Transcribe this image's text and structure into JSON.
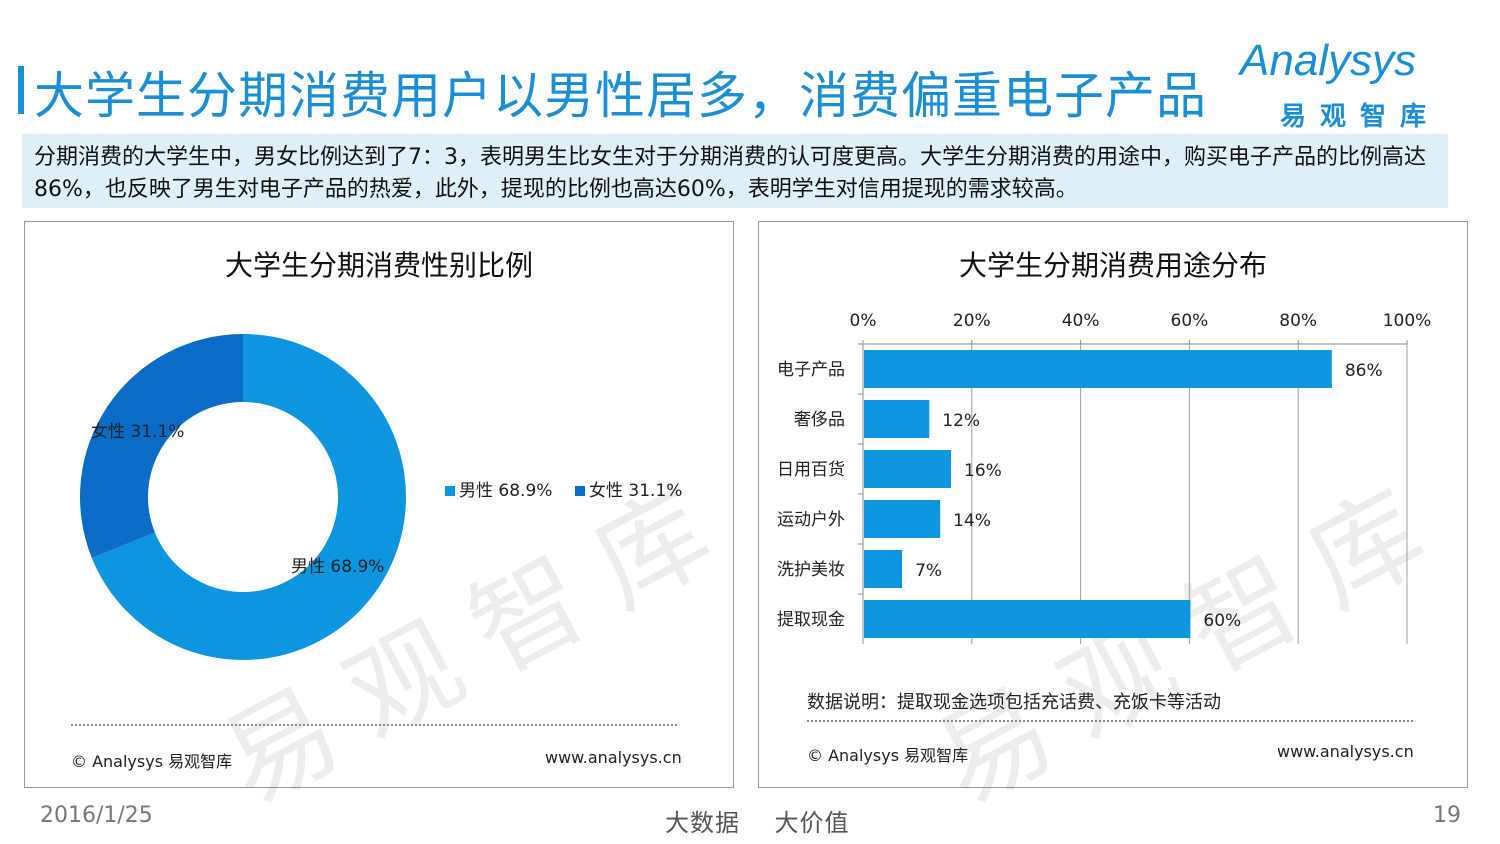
{
  "header": {
    "title": "大学生分期消费用户以男性居多，消费偏重电子产品",
    "logo_text": "Analysys",
    "logo_cn": "易观智库"
  },
  "summary": "分期消费的大学生中，男女比例达到了7：3，表明男生比女生对于分期消费的认可度更高。大学生分期消费的用途中，购买电子产品的比例高达86%，也反映了男生对电子产品的热爱，此外，提现的比例也高达60%，表明学生对信用提现的需求较高。",
  "watermark": "易观智库",
  "left_panel": {
    "footer_copy": "© Analysys 易观智库",
    "footer_url": "www.analysys.cn"
  },
  "right_panel": {
    "note": "数据说明：提取现金选项包括充话费、充饭卡等活动",
    "footer_copy": "© Analysys 易观智库",
    "footer_url": "www.analysys.cn"
  },
  "chart_data": [
    {
      "type": "pie",
      "title": "大学生分期消费性别比例",
      "categories": [
        "男性",
        "女性"
      ],
      "values": [
        68.9,
        31.1
      ],
      "value_labels": [
        "68.9%",
        "31.1%"
      ],
      "legend": "right",
      "colors": [
        "#0e95df",
        "#0a6cc6"
      ]
    },
    {
      "type": "bar",
      "orientation": "horizontal",
      "title": "大学生分期消费用途分布",
      "categories": [
        "电子产品",
        "奢侈品",
        "日用百货",
        "运动户外",
        "洗护美妆",
        "提取现金"
      ],
      "values": [
        86,
        12,
        16,
        14,
        7,
        60
      ],
      "value_labels": [
        "86%",
        "12%",
        "16%",
        "14%",
        "7%",
        "60%"
      ],
      "xlim": [
        0,
        100
      ],
      "ticks": [
        "0%",
        "20%",
        "40%",
        "60%",
        "80%",
        "100%"
      ],
      "grid": true,
      "color": "#0e95df"
    }
  ],
  "bottom": {
    "date": "2016/1/25",
    "slogan": "大数据    大价值",
    "page": "19"
  }
}
